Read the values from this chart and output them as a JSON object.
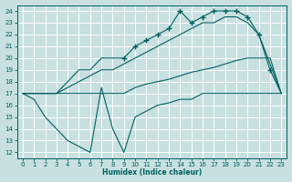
{
  "xlabel": "Humidex (Indice chaleur)",
  "bg_color": "#c8e0e0",
  "grid_color": "#ffffff",
  "line_color": "#006060",
  "xlim": [
    -0.5,
    23.5
  ],
  "ylim": [
    11.5,
    24.5
  ],
  "xticks": [
    0,
    1,
    2,
    3,
    4,
    5,
    6,
    7,
    8,
    9,
    10,
    11,
    12,
    13,
    14,
    15,
    16,
    17,
    18,
    19,
    20,
    21,
    22,
    23
  ],
  "yticks": [
    12,
    13,
    14,
    15,
    16,
    17,
    18,
    19,
    20,
    21,
    22,
    23,
    24
  ],
  "line_top_x": [
    0,
    1,
    2,
    3,
    4,
    5,
    6,
    7,
    8,
    9,
    10,
    11,
    12,
    13,
    14,
    15,
    16,
    17,
    18,
    19,
    20,
    21,
    22,
    23
  ],
  "line_top_y": [
    17,
    17,
    17,
    17,
    18,
    19,
    19,
    20,
    20,
    20,
    21,
    21.5,
    22,
    22.5,
    24,
    23,
    23.5,
    24,
    24,
    24,
    23.5,
    22,
    19,
    17
  ],
  "line_mid_x": [
    0,
    1,
    2,
    3,
    4,
    5,
    6,
    7,
    8,
    9,
    10,
    11,
    12,
    13,
    14,
    15,
    16,
    17,
    18,
    19,
    20,
    21,
    22,
    23
  ],
  "line_mid_y": [
    17,
    17,
    17,
    17,
    17.5,
    18,
    18.5,
    19,
    19,
    19.5,
    20,
    20.5,
    21,
    21.5,
    22,
    22.5,
    23,
    23,
    23.5,
    23.5,
    23,
    22,
    19.5,
    17
  ],
  "line_diag_x": [
    0,
    1,
    2,
    3,
    4,
    5,
    6,
    7,
    8,
    9,
    10,
    11,
    12,
    13,
    14,
    15,
    16,
    17,
    18,
    19,
    20,
    21,
    22,
    23
  ],
  "line_diag_y": [
    17,
    17,
    17,
    17,
    17,
    17,
    17,
    17,
    17,
    17,
    17.5,
    17.8,
    18,
    18.2,
    18.5,
    18.8,
    19,
    19.2,
    19.5,
    19.8,
    20,
    20,
    20,
    17
  ],
  "line_bot_x": [
    0,
    1,
    2,
    3,
    4,
    5,
    6,
    7,
    8,
    9,
    10,
    11,
    12,
    13,
    14,
    15,
    16,
    17,
    18,
    19,
    20,
    21,
    22,
    23
  ],
  "line_bot_y": [
    17,
    16.5,
    15,
    14,
    13,
    12.5,
    12,
    17.5,
    14,
    12,
    15,
    15.5,
    16,
    16.2,
    16.5,
    16.5,
    17,
    17,
    17,
    17,
    17,
    17,
    17,
    17
  ],
  "marker_top_x": [
    9,
    10,
    11,
    12,
    13,
    14,
    15,
    16,
    17,
    18,
    19,
    20,
    21,
    22
  ],
  "marker_top_y": [
    20,
    21,
    21.5,
    22,
    22.5,
    24,
    23,
    23.5,
    24,
    24,
    24,
    23.5,
    22,
    19
  ]
}
